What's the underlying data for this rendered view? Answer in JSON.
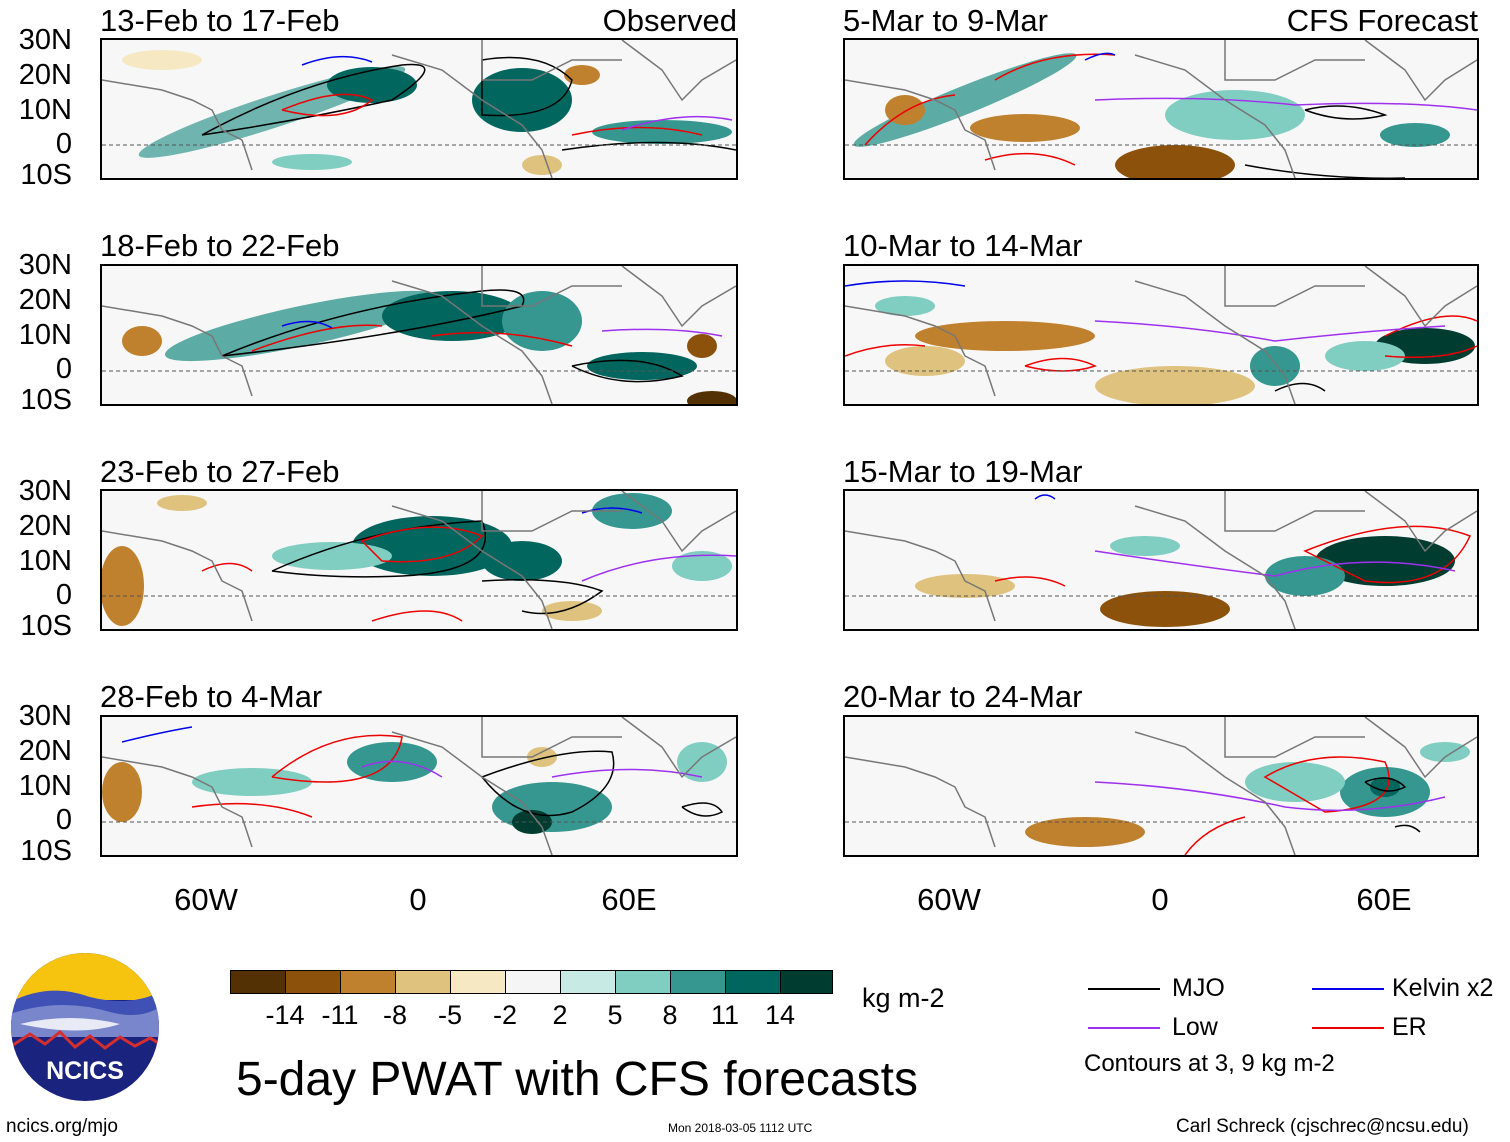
{
  "left_header": "Observed",
  "right_header": "CFS Forecast",
  "panels_left": [
    {
      "title": "13-Feb to 17-Feb"
    },
    {
      "title": "18-Feb to 22-Feb"
    },
    {
      "title": "23-Feb to 27-Feb"
    },
    {
      "title": "28-Feb to 4-Mar"
    }
  ],
  "panels_right": [
    {
      "title": "5-Mar to 9-Mar"
    },
    {
      "title": "10-Mar to 14-Mar"
    },
    {
      "title": "15-Mar to 19-Mar"
    },
    {
      "title": "20-Mar to 24-Mar"
    }
  ],
  "lat_labels": [
    "30N",
    "20N",
    "10N",
    "0",
    "10S"
  ],
  "lon_labels": [
    "60W",
    "0",
    "60E"
  ],
  "colorbar": {
    "colors": [
      "#543005",
      "#8c510a",
      "#bf812d",
      "#dfc27d",
      "#f6e8c3",
      "#f5f5f5",
      "#c7eae5",
      "#80cdc1",
      "#35978f",
      "#01665e",
      "#003c30"
    ],
    "ticks": [
      "-14",
      "-11",
      "-8",
      "-5",
      "-2",
      "2",
      "5",
      "8",
      "11",
      "14"
    ],
    "units": "kg m-2"
  },
  "title": "5-day PWAT with CFS forecasts",
  "legend": [
    {
      "label": "MJO",
      "color": "#000000"
    },
    {
      "label": "Kelvin x2",
      "color": "#0000ee"
    },
    {
      "label": "Low",
      "color": "#a030f0"
    },
    {
      "label": "ER",
      "color": "#ee0000"
    }
  ],
  "contour_note": "Contours at 3, 9 kg m-2",
  "logo_text": "NCICS",
  "footer": {
    "website": "ncics.org/mjo",
    "timestamp": "Mon 2018-03-05 1112 UTC",
    "author": "Carl Schreck (cjschrec@ncsu.edu)"
  }
}
